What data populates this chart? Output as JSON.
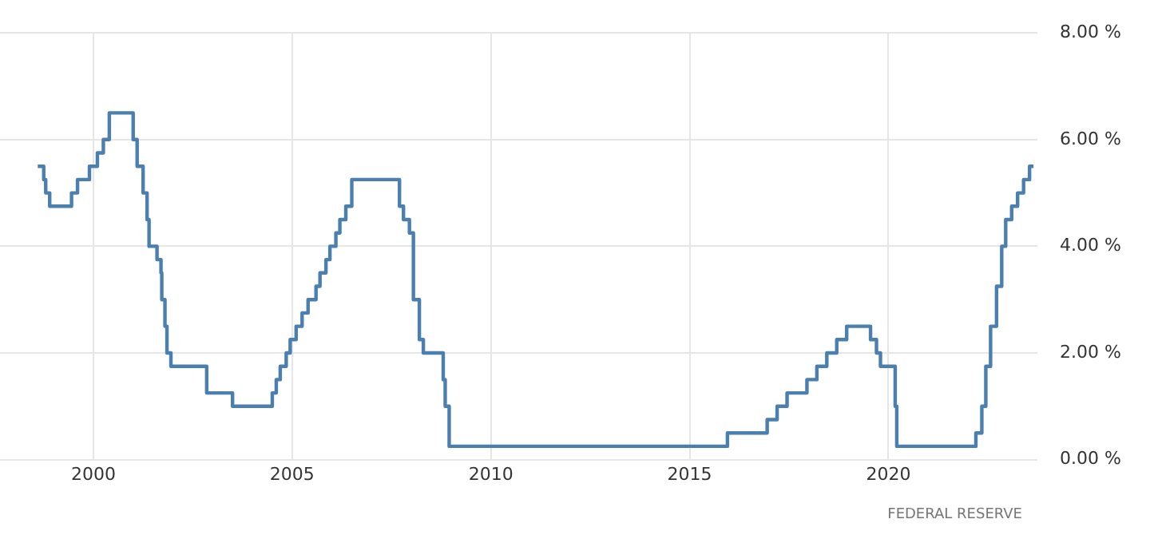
{
  "chart_data": {
    "type": "step",
    "x": [
      1998.6,
      1998.75,
      1998.8,
      1998.9,
      1999.45,
      1999.6,
      1999.9,
      2000.1,
      2000.25,
      2000.4,
      2001.0,
      2001.1,
      2001.25,
      2001.35,
      2001.4,
      2001.6,
      2001.7,
      2001.72,
      2001.8,
      2001.85,
      2001.95,
      2002.85,
      2003.5,
      2004.5,
      2004.6,
      2004.7,
      2004.85,
      2004.95,
      2005.1,
      2005.25,
      2005.4,
      2005.6,
      2005.7,
      2005.85,
      2005.95,
      2006.1,
      2006.2,
      2006.35,
      2006.5,
      2007.7,
      2007.8,
      2007.95,
      2008.05,
      2008.2,
      2008.3,
      2008.8,
      2008.85,
      2008.95,
      2015.95,
      2016.95,
      2017.2,
      2017.45,
      2017.95,
      2018.2,
      2018.45,
      2018.7,
      2018.95,
      2019.55,
      2019.7,
      2019.8,
      2020.17,
      2020.21,
      2022.2,
      2022.35,
      2022.45,
      2022.57,
      2022.72,
      2022.85,
      2022.95,
      2023.1,
      2023.25,
      2023.4,
      2023.55,
      2023.65
    ],
    "series": [
      {
        "color": "#4a7fb0",
        "values": [
          5.5,
          5.25,
          5.0,
          4.75,
          5.0,
          5.25,
          5.5,
          5.75,
          6.0,
          6.5,
          6.0,
          5.5,
          5.0,
          4.5,
          4.0,
          3.75,
          3.5,
          3.0,
          2.5,
          2.0,
          1.75,
          1.25,
          1.0,
          1.25,
          1.5,
          1.75,
          2.0,
          2.25,
          2.5,
          2.75,
          3.0,
          3.25,
          3.5,
          3.75,
          4.0,
          4.25,
          4.5,
          4.75,
          5.25,
          4.75,
          4.5,
          4.25,
          3.0,
          2.25,
          2.0,
          1.5,
          1.0,
          0.25,
          0.5,
          0.75,
          1.0,
          1.25,
          1.5,
          1.75,
          2.0,
          2.25,
          2.5,
          2.25,
          2.0,
          1.75,
          1.0,
          0.25,
          0.5,
          1.0,
          1.75,
          2.5,
          3.25,
          4.0,
          4.5,
          4.75,
          5.0,
          5.25,
          5.5,
          5.5
        ]
      }
    ],
    "xlim": [
      1997.65,
      2023.75
    ],
    "xticks": [
      2000,
      2005,
      2010,
      2015,
      2020
    ],
    "ylim": [
      0,
      8
    ],
    "yticks": [
      {
        "value": 0,
        "label": "0.00 %"
      },
      {
        "value": 2,
        "label": "2.00 %"
      },
      {
        "value": 4,
        "label": "4.00 %"
      },
      {
        "value": 6,
        "label": "6.00 %"
      },
      {
        "value": 8,
        "label": "8.00 %"
      }
    ],
    "grid": true,
    "legend": false,
    "marker": "none",
    "line_style": "solid",
    "annotations": [
      "FEDERAL RESERVE"
    ]
  }
}
